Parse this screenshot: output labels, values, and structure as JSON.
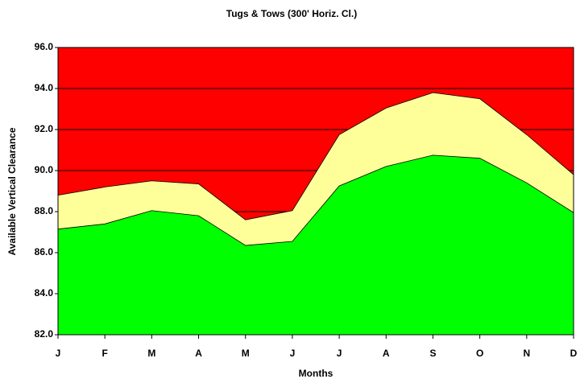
{
  "chart_data": {
    "type": "area",
    "title": "Tugs & Tows (300' Horiz. Cl.)",
    "x_label": "Months",
    "y_label": "Available Vertical Clearance",
    "categories": [
      "J",
      "F",
      "M",
      "A",
      "M",
      "J",
      "J",
      "A",
      "S",
      "O",
      "N",
      "D"
    ],
    "series": [
      {
        "color": "#ffff99",
        "values": [
          88.8,
          89.2,
          89.5,
          89.35,
          87.6,
          88.05,
          91.75,
          93.05,
          93.8,
          93.5,
          91.75,
          89.8
        ]
      },
      {
        "color": "#00ff00",
        "values": [
          87.15,
          87.4,
          88.05,
          87.8,
          86.35,
          86.55,
          89.25,
          90.2,
          90.75,
          90.6,
          89.4,
          87.95
        ]
      }
    ],
    "background_color": "#ff0000",
    "ylim": [
      82,
      96
    ],
    "yticks": [
      {
        "value": 82,
        "label": "82.0"
      },
      {
        "value": 84,
        "label": "84.0"
      },
      {
        "value": 86,
        "label": "86.0"
      },
      {
        "value": 88,
        "label": "88.0"
      },
      {
        "value": 90,
        "label": "90.0"
      },
      {
        "value": 92,
        "label": "92.0"
      },
      {
        "value": 94,
        "label": "94.0"
      },
      {
        "value": 96,
        "label": "96.0"
      }
    ],
    "grid": true
  }
}
